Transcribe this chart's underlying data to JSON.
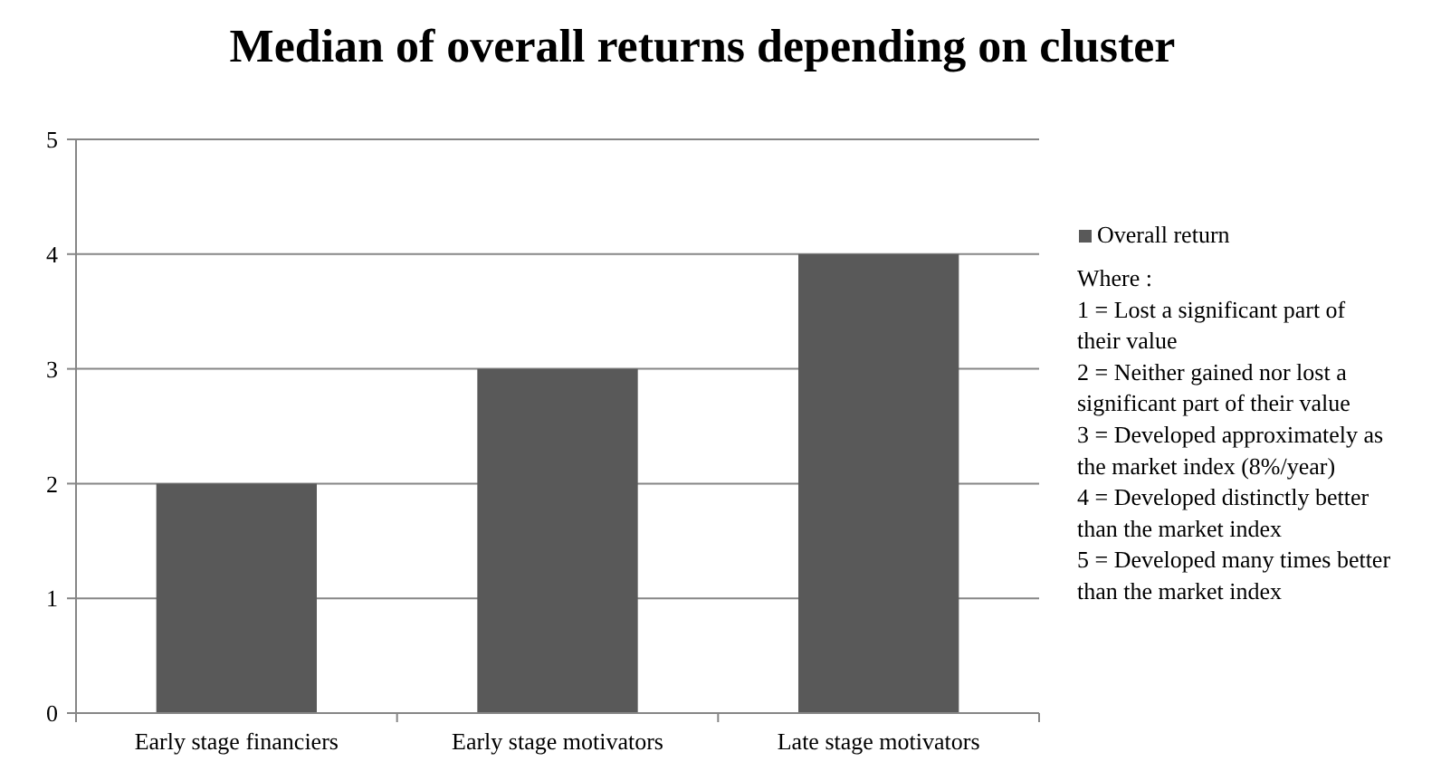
{
  "chart_data": {
    "type": "bar",
    "title": "Median of overall returns depending on cluster",
    "categories": [
      "Early stage financiers",
      "Early stage motivators",
      "Late stage motivators"
    ],
    "series": [
      {
        "name": "Overall return",
        "color": "#595959",
        "values": [
          2,
          3,
          4
        ]
      }
    ],
    "ylim": [
      0,
      5
    ],
    "yticks": [
      0,
      1,
      2,
      3,
      4,
      5
    ],
    "grid": "y",
    "legend": "right",
    "annotations": [
      "Where :",
      "1 = Lost a significant part of their value",
      "2 = Neither gained nor lost a significant part of their value",
      "3 = Developed approximately  as the market index (8%/year)",
      "4 = Developed distinctly better than the market index",
      "5 = Developed many times better than the market index"
    ]
  }
}
